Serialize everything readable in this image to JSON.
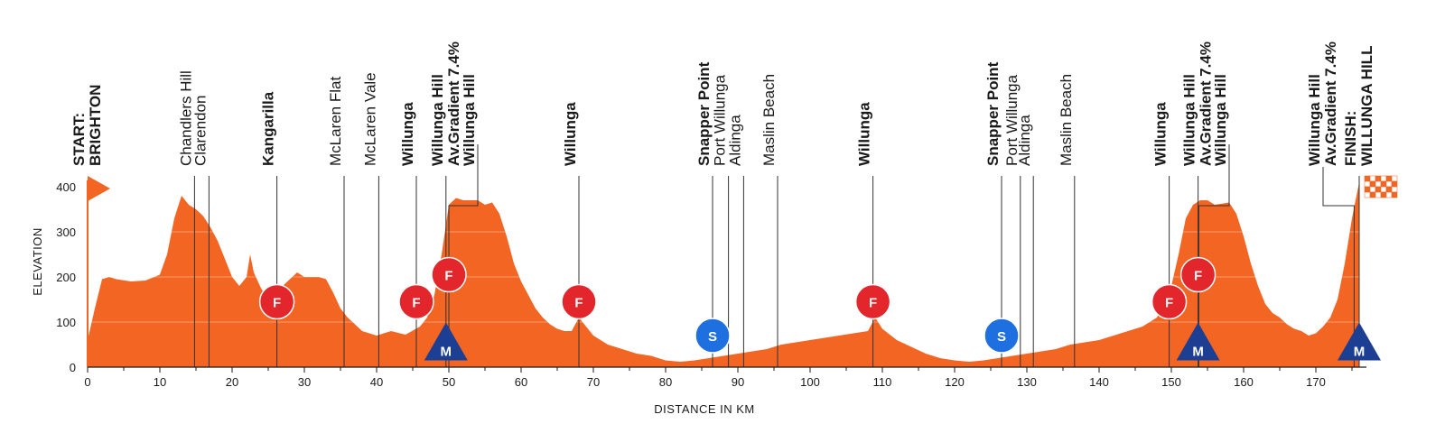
{
  "chart_data": {
    "type": "area",
    "xlabel": "DISTANCE IN KM",
    "ylabel": "ELEVATION",
    "xlim": [
      0,
      177
    ],
    "ylim": [
      0,
      420
    ],
    "xticks": [
      0,
      10,
      20,
      30,
      40,
      50,
      60,
      70,
      80,
      90,
      100,
      110,
      120,
      130,
      140,
      150,
      160,
      170
    ],
    "yticks": [
      0,
      100,
      200,
      300,
      400
    ],
    "grid": "horizontal",
    "colors": {
      "profile": "#f26522",
      "sprint": "#e3262b",
      "kom": "#1c3f94",
      "sprint_point": "#1e6fe0"
    },
    "profile": {
      "x": [
        0,
        1,
        2,
        3,
        4,
        6,
        8,
        10,
        11,
        12,
        13,
        14,
        15,
        16,
        17,
        18,
        19,
        20,
        21,
        22,
        22.5,
        23,
        24,
        25,
        26,
        27,
        28,
        29,
        30,
        31,
        32,
        33,
        34,
        35,
        36,
        37,
        38,
        40,
        42,
        44,
        46,
        47,
        48,
        49,
        50,
        51,
        52,
        54,
        55,
        56,
        57,
        58,
        59,
        60,
        61,
        62,
        63,
        64,
        65,
        66,
        67,
        68,
        69,
        70,
        72,
        74,
        76,
        78,
        80,
        82,
        84,
        86,
        88,
        90,
        92,
        94,
        96,
        98,
        100,
        102,
        104,
        106,
        108,
        109,
        110,
        112,
        114,
        116,
        118,
        120,
        122,
        124,
        126,
        128,
        130,
        132,
        134,
        136,
        138,
        140,
        142,
        144,
        146,
        148,
        150,
        151,
        152,
        153,
        154,
        155,
        156,
        158,
        159,
        160,
        161,
        162,
        163,
        164,
        165,
        166,
        167,
        168,
        169,
        170,
        171,
        172,
        173,
        174,
        175,
        176
      ],
      "y": [
        60,
        130,
        195,
        200,
        195,
        190,
        192,
        205,
        250,
        330,
        380,
        360,
        350,
        335,
        310,
        280,
        240,
        200,
        180,
        200,
        250,
        210,
        175,
        150,
        165,
        180,
        195,
        210,
        200,
        200,
        200,
        195,
        165,
        130,
        110,
        95,
        80,
        70,
        80,
        72,
        90,
        110,
        160,
        250,
        360,
        375,
        370,
        370,
        360,
        365,
        340,
        290,
        230,
        190,
        160,
        130,
        110,
        95,
        85,
        80,
        80,
        110,
        90,
        70,
        50,
        40,
        30,
        25,
        15,
        12,
        15,
        20,
        25,
        30,
        35,
        40,
        50,
        55,
        60,
        65,
        70,
        75,
        80,
        110,
        85,
        60,
        45,
        30,
        20,
        15,
        12,
        15,
        20,
        25,
        30,
        35,
        40,
        50,
        55,
        60,
        70,
        80,
        90,
        110,
        180,
        250,
        330,
        360,
        370,
        370,
        360,
        365,
        340,
        290,
        230,
        180,
        140,
        120,
        110,
        95,
        85,
        80,
        70,
        75,
        90,
        110,
        150,
        230,
        330,
        410
      ]
    },
    "vertical_guides_km": [
      14.8,
      16.8,
      26.2,
      35.5,
      40.3,
      45.5,
      49.6,
      68,
      86.5,
      88.7,
      90.8,
      95.5,
      108.7,
      126.5,
      129.1,
      130.9,
      136.6,
      149.7,
      153.7,
      176
    ]
  },
  "locations": [
    {
      "km": 0,
      "label": "START:",
      "bold": true,
      "line": false
    },
    {
      "km": 0,
      "label": "BRIGHTON",
      "bold": true,
      "line": false
    },
    {
      "km": 14.8,
      "label": "Chandlers Hill",
      "bold": false,
      "line": true
    },
    {
      "km": 16.8,
      "label": "Clarendon",
      "bold": false,
      "line": true
    },
    {
      "km": 26.2,
      "label": "Kangarilla",
      "bold": true,
      "line": true
    },
    {
      "km": 35.5,
      "label": "McLaren Flat",
      "bold": false,
      "line": true
    },
    {
      "km": 40.3,
      "label": "McLaren Vale",
      "bold": false,
      "line": true
    },
    {
      "km": 45.5,
      "label": "Willunga",
      "bold": true,
      "line": true
    },
    {
      "km": 49.6,
      "label": "Willunga Hill",
      "bold": true,
      "line": true
    },
    {
      "km": 49.6,
      "label": "Av.Gradient 7.4%",
      "bold": true,
      "line": false
    },
    {
      "km": 54,
      "label": "Willunga Hill",
      "bold": true,
      "line": false
    },
    {
      "km": 68,
      "label": "Willunga",
      "bold": true,
      "line": true
    },
    {
      "km": 86.5,
      "label": "Snapper Point",
      "bold": true,
      "line": true
    },
    {
      "km": 88.7,
      "label": "Port Willunga",
      "bold": false,
      "line": true
    },
    {
      "km": 90.8,
      "label": "Aldinga",
      "bold": false,
      "line": true
    },
    {
      "km": 95.5,
      "label": "Maslin Beach",
      "bold": false,
      "line": true
    },
    {
      "km": 108.7,
      "label": "Willunga",
      "bold": true,
      "line": true
    },
    {
      "km": 126.5,
      "label": "Snapper Point",
      "bold": true,
      "line": true
    },
    {
      "km": 129.1,
      "label": "Port Willunga",
      "bold": false,
      "line": true
    },
    {
      "km": 130.9,
      "label": "Aldinga",
      "bold": false,
      "line": true
    },
    {
      "km": 136.6,
      "label": "Maslin Beach",
      "bold": false,
      "line": true
    },
    {
      "km": 149.7,
      "label": "Willunga",
      "bold": true,
      "line": true
    },
    {
      "km": 153.7,
      "label": "Willunga Hill",
      "bold": true,
      "line": true
    },
    {
      "km": 153.7,
      "label": "Av.Gradient 7.4%",
      "bold": true,
      "line": false
    },
    {
      "km": 158,
      "label": "Willunga Hill",
      "bold": true,
      "line": false
    },
    {
      "km": 171,
      "label": "Willunga Hill",
      "bold": true,
      "line": false
    },
    {
      "km": 171,
      "label": "Av.Gradient 7.4%",
      "bold": true,
      "line": false
    },
    {
      "km": 176,
      "label": "FINISH:",
      "bold": true,
      "line": false
    },
    {
      "km": 176,
      "label": "WILLUNGA HILL",
      "bold": true,
      "line": false
    }
  ],
  "markers": [
    {
      "type": "F",
      "km": 26.2,
      "elev": 145
    },
    {
      "type": "F",
      "km": 45.5,
      "elev": 145
    },
    {
      "type": "F",
      "km": 50,
      "elev": 205
    },
    {
      "type": "F",
      "km": 68,
      "elev": 145
    },
    {
      "type": "F",
      "km": 108.7,
      "elev": 145
    },
    {
      "type": "F",
      "km": 149.7,
      "elev": 145
    },
    {
      "type": "F",
      "km": 153.7,
      "elev": 205
    },
    {
      "type": "S",
      "km": 86.5,
      "elev": 70
    },
    {
      "type": "S",
      "km": 126.5,
      "elev": 70
    },
    {
      "type": "M",
      "km": 49.6,
      "elev": 55
    },
    {
      "type": "M",
      "km": 153.7,
      "elev": 55
    },
    {
      "type": "M",
      "km": 176,
      "elev": 55
    }
  ]
}
